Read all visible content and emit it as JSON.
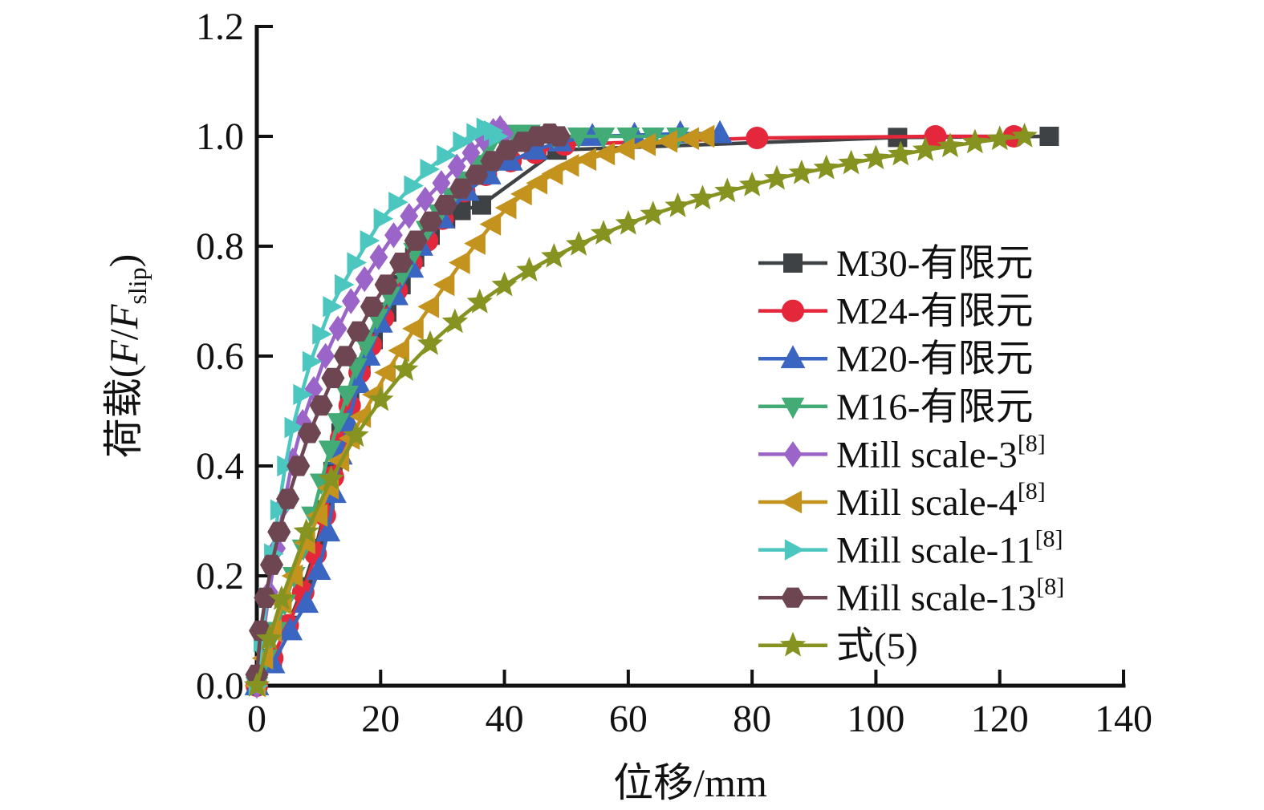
{
  "figure": {
    "background": "#ffffff",
    "text_color": "#111111"
  },
  "chart_data": {
    "type": "line",
    "title": "",
    "xlabel": "位移/mm",
    "ylabel": "荷载(F/F_slip)",
    "ylabel_parts": {
      "prefix": "荷载(",
      "f1": "F",
      "slash": "/",
      "f2": "F",
      "sub": "slip",
      "suffix": ")"
    },
    "xlim": [
      0,
      140
    ],
    "ylim": [
      0.0,
      1.2
    ],
    "xticks": [
      0,
      20,
      40,
      60,
      80,
      100,
      120,
      140
    ],
    "yticks": [
      0.0,
      0.2,
      0.4,
      0.6,
      0.8,
      1.0,
      1.2
    ],
    "grid": false,
    "legend_position": "inside-right",
    "series": [
      {
        "id": "m30",
        "name": "M30-有限元",
        "sup": "",
        "color": "#3f4245",
        "marker": "square",
        "marker_size": 12,
        "points": [
          [
            0,
            0
          ],
          [
            2.5,
            0.05
          ],
          [
            5,
            0.11
          ],
          [
            7.5,
            0.18
          ],
          [
            9.5,
            0.25
          ],
          [
            11,
            0.32
          ],
          [
            12.3,
            0.39
          ],
          [
            13.6,
            0.46
          ],
          [
            15,
            0.52
          ],
          [
            16.8,
            0.58
          ],
          [
            18.8,
            0.63
          ],
          [
            21,
            0.68
          ],
          [
            23.3,
            0.73
          ],
          [
            25.5,
            0.78
          ],
          [
            28,
            0.82
          ],
          [
            30.5,
            0.85
          ],
          [
            33,
            0.865
          ],
          [
            36.3,
            0.875
          ],
          [
            48.5,
            0.975
          ],
          [
            103.5,
            0.998
          ],
          [
            128,
            1.0
          ]
        ]
      },
      {
        "id": "m24",
        "name": "M24-有限元",
        "sup": "",
        "color": "#e5273b",
        "marker": "circle",
        "marker_size": 14,
        "points": [
          [
            0,
            0
          ],
          [
            2.5,
            0.05
          ],
          [
            5,
            0.11
          ],
          [
            7.5,
            0.17
          ],
          [
            9.5,
            0.24
          ],
          [
            11,
            0.31
          ],
          [
            12.3,
            0.38
          ],
          [
            13.6,
            0.45
          ],
          [
            15,
            0.51
          ],
          [
            16.6,
            0.57
          ],
          [
            18.4,
            0.62
          ],
          [
            20.4,
            0.67
          ],
          [
            22.6,
            0.72
          ],
          [
            25,
            0.77
          ],
          [
            27.5,
            0.81
          ],
          [
            30,
            0.85
          ],
          [
            33.5,
            0.9
          ],
          [
            37,
            0.93
          ],
          [
            41,
            0.955
          ],
          [
            45,
            0.97
          ],
          [
            49.7,
            0.985
          ],
          [
            80.8,
            0.997
          ],
          [
            109.6,
            1.0
          ],
          [
            122.3,
            1.0
          ]
        ]
      },
      {
        "id": "m20",
        "name": "M20-有限元",
        "sup": "",
        "color": "#3a66c2",
        "marker": "triangle-up",
        "marker_size": 14,
        "points": [
          [
            0,
            0
          ],
          [
            2.6,
            0.04
          ],
          [
            5.4,
            0.1
          ],
          [
            8,
            0.15
          ],
          [
            10,
            0.21
          ],
          [
            11.5,
            0.28
          ],
          [
            12.5,
            0.35
          ],
          [
            13.5,
            0.42
          ],
          [
            14.8,
            0.48
          ],
          [
            16.4,
            0.55
          ],
          [
            18,
            0.6
          ],
          [
            20,
            0.66
          ],
          [
            22.5,
            0.71
          ],
          [
            25,
            0.76
          ],
          [
            26.5,
            0.8
          ],
          [
            30,
            0.85
          ],
          [
            34,
            0.9
          ],
          [
            37.5,
            0.93
          ],
          [
            41,
            0.955
          ],
          [
            45,
            0.975
          ],
          [
            49,
            0.99
          ],
          [
            54.2,
            1.0
          ],
          [
            61,
            1.002
          ],
          [
            68.4,
            1.005
          ],
          [
            74.8,
            1.005
          ]
        ]
      },
      {
        "id": "m16",
        "name": "M16-有限元",
        "sup": "",
        "color": "#43ab76",
        "marker": "triangle-down",
        "marker_size": 13,
        "points": [
          [
            0,
            0
          ],
          [
            1.5,
            0.05
          ],
          [
            3,
            0.1
          ],
          [
            4.5,
            0.15
          ],
          [
            6,
            0.2
          ],
          [
            7.5,
            0.25
          ],
          [
            9,
            0.31
          ],
          [
            10.4,
            0.37
          ],
          [
            11.8,
            0.43
          ],
          [
            13.2,
            0.48
          ],
          [
            14.6,
            0.53
          ],
          [
            16,
            0.58
          ],
          [
            17.6,
            0.62
          ],
          [
            19.4,
            0.67
          ],
          [
            21.4,
            0.71
          ],
          [
            23.5,
            0.75
          ],
          [
            25.5,
            0.79
          ],
          [
            27.5,
            0.83
          ],
          [
            29.5,
            0.86
          ],
          [
            31.5,
            0.89
          ],
          [
            33.5,
            0.92
          ],
          [
            35.5,
            0.95
          ],
          [
            37.5,
            0.98
          ],
          [
            39.5,
            1.0
          ],
          [
            41.5,
            1.005
          ],
          [
            44,
            1.005
          ],
          [
            48,
            1.0
          ],
          [
            52,
            1.0
          ],
          [
            56,
            1.0
          ],
          [
            60,
            1.0
          ],
          [
            64,
            1.0
          ],
          [
            68,
            1.0
          ]
        ]
      },
      {
        "id": "mill-scale-3",
        "name": "Mill scale-3",
        "sup": "[8]",
        "color": "#9a64c8",
        "marker": "diamond",
        "marker_size": 12,
        "points": [
          [
            0,
            0
          ],
          [
            1,
            0.09
          ],
          [
            2,
            0.17
          ],
          [
            3.2,
            0.25
          ],
          [
            4.4,
            0.33
          ],
          [
            5.8,
            0.41
          ],
          [
            7.4,
            0.48
          ],
          [
            9.2,
            0.54
          ],
          [
            11.1,
            0.6
          ],
          [
            13.1,
            0.65
          ],
          [
            15.2,
            0.7
          ],
          [
            17.4,
            0.74
          ],
          [
            19.7,
            0.78
          ],
          [
            22.1,
            0.82
          ],
          [
            24.6,
            0.855
          ],
          [
            27.2,
            0.885
          ],
          [
            29.8,
            0.915
          ],
          [
            32.3,
            0.945
          ],
          [
            34.6,
            0.97
          ],
          [
            36.6,
            0.995
          ],
          [
            38.2,
            1.01
          ],
          [
            39.3,
            1.015
          ],
          [
            40,
            1.005
          ]
        ]
      },
      {
        "id": "mill-scale-4",
        "name": "Mill scale-4",
        "sup": "[8]",
        "color": "#c3931d",
        "marker": "triangle-left",
        "marker_size": 13,
        "points": [
          [
            0,
            0
          ],
          [
            1.2,
            0.05
          ],
          [
            2.6,
            0.1
          ],
          [
            4.2,
            0.15
          ],
          [
            6,
            0.2
          ],
          [
            8,
            0.26
          ],
          [
            10,
            0.31
          ],
          [
            11.8,
            0.36
          ],
          [
            13.5,
            0.41
          ],
          [
            15.2,
            0.45
          ],
          [
            17,
            0.49
          ],
          [
            19,
            0.53
          ],
          [
            21,
            0.57
          ],
          [
            23.2,
            0.61
          ],
          [
            25.5,
            0.65
          ],
          [
            28,
            0.69
          ],
          [
            30.5,
            0.73
          ],
          [
            33,
            0.77
          ],
          [
            35.5,
            0.805
          ],
          [
            38,
            0.84
          ],
          [
            40.5,
            0.87
          ],
          [
            43,
            0.895
          ],
          [
            45.5,
            0.915
          ],
          [
            48,
            0.932
          ],
          [
            50.6,
            0.947
          ],
          [
            53.4,
            0.958
          ],
          [
            56.4,
            0.968
          ],
          [
            59.6,
            0.977
          ],
          [
            63,
            0.985
          ],
          [
            66.5,
            0.991
          ],
          [
            70,
            0.996
          ],
          [
            72.5,
            1.0
          ]
        ]
      },
      {
        "id": "mill-scale-11",
        "name": "Mill scale-11",
        "sup": "[8]",
        "color": "#4cc7c0",
        "marker": "triangle-right",
        "marker_size": 12,
        "points": [
          [
            0,
            0
          ],
          [
            0.8,
            0.08
          ],
          [
            1.6,
            0.16
          ],
          [
            2.5,
            0.24
          ],
          [
            3.5,
            0.32
          ],
          [
            4.6,
            0.4
          ],
          [
            5.8,
            0.47
          ],
          [
            7.2,
            0.53
          ],
          [
            8.7,
            0.59
          ],
          [
            10.3,
            0.64
          ],
          [
            12,
            0.69
          ],
          [
            13.9,
            0.73
          ],
          [
            15.9,
            0.77
          ],
          [
            18,
            0.81
          ],
          [
            20.2,
            0.85
          ],
          [
            22.6,
            0.88
          ],
          [
            25.1,
            0.91
          ],
          [
            27.7,
            0.94
          ],
          [
            30.4,
            0.965
          ],
          [
            33,
            0.99
          ],
          [
            35.2,
            1.005
          ],
          [
            36.8,
            1.015
          ],
          [
            38,
            1.01
          ],
          [
            38.8,
            1.0
          ]
        ]
      },
      {
        "id": "mill-scale-13",
        "name": "Mill scale-13",
        "sup": "[8]",
        "color": "#6d4652",
        "marker": "hexagon",
        "marker_size": 13,
        "points": [
          [
            0,
            0.02
          ],
          [
            0.6,
            0.1
          ],
          [
            1.4,
            0.16
          ],
          [
            2.4,
            0.22
          ],
          [
            3.6,
            0.28
          ],
          [
            5,
            0.34
          ],
          [
            6.7,
            0.4
          ],
          [
            8.5,
            0.46
          ],
          [
            10.4,
            0.51
          ],
          [
            12.3,
            0.56
          ],
          [
            14.3,
            0.6
          ],
          [
            16.4,
            0.645
          ],
          [
            18.6,
            0.69
          ],
          [
            20.9,
            0.73
          ],
          [
            23.3,
            0.77
          ],
          [
            25.7,
            0.81
          ],
          [
            28.1,
            0.845
          ],
          [
            30.5,
            0.875
          ],
          [
            33,
            0.905
          ],
          [
            35.5,
            0.93
          ],
          [
            38,
            0.955
          ],
          [
            40.5,
            0.975
          ],
          [
            43,
            0.99
          ],
          [
            45.3,
            1.0
          ],
          [
            47.3,
            1.005
          ],
          [
            48.8,
            1.0
          ]
        ]
      },
      {
        "id": "eq5",
        "name": "式(5)",
        "sup": "",
        "color": "#879321",
        "marker": "star",
        "marker_size": 17,
        "points": [
          [
            0,
            0
          ],
          [
            2,
            0.085
          ],
          [
            4,
            0.158
          ],
          [
            8,
            0.28
          ],
          [
            12,
            0.376
          ],
          [
            16,
            0.455
          ],
          [
            20,
            0.52
          ],
          [
            24,
            0.575
          ],
          [
            28,
            0.622
          ],
          [
            32,
            0.662
          ],
          [
            36,
            0.698
          ],
          [
            40,
            0.729
          ],
          [
            44,
            0.756
          ],
          [
            48,
            0.781
          ],
          [
            52,
            0.803
          ],
          [
            56,
            0.823
          ],
          [
            60,
            0.841
          ],
          [
            64,
            0.858
          ],
          [
            68,
            0.873
          ],
          [
            72,
            0.887
          ],
          [
            76,
            0.9
          ],
          [
            80,
            0.911
          ],
          [
            84,
            0.923
          ],
          [
            88,
            0.933
          ],
          [
            92,
            0.942
          ],
          [
            96,
            0.951
          ],
          [
            100,
            0.96
          ],
          [
            104,
            0.967
          ],
          [
            108,
            0.975
          ],
          [
            112,
            0.982
          ],
          [
            116,
            0.989
          ],
          [
            120,
            0.995
          ],
          [
            124,
            1.0
          ]
        ]
      }
    ]
  }
}
